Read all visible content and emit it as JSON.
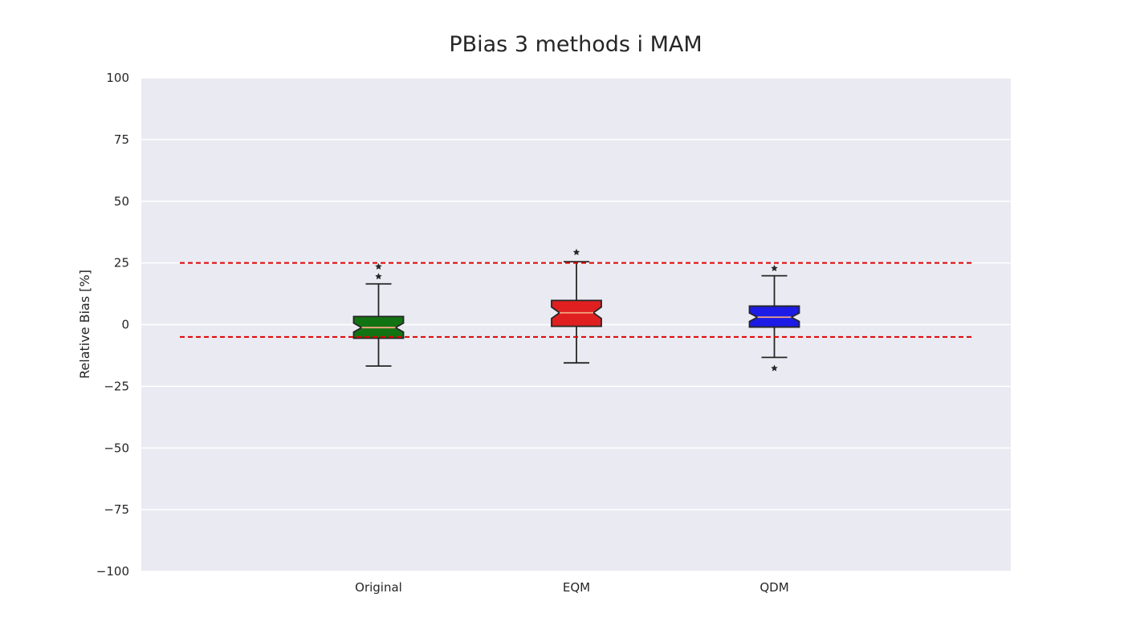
{
  "chart_data": {
    "type": "box",
    "title": "PBias 3 methods i MAM",
    "xlabel": "",
    "ylabel": "Relative Bias [%]",
    "ylim": [
      -100,
      100
    ],
    "yticks": [
      100,
      75,
      50,
      25,
      0,
      -25,
      -50,
      -75,
      -100
    ],
    "ytick_labels": [
      "100",
      "75",
      "50",
      "25",
      "0",
      "−25",
      "−50",
      "−75",
      "−100"
    ],
    "grid": true,
    "categories": [
      "Original",
      "EQM",
      "QDM"
    ],
    "boxes": [
      {
        "name": "Original",
        "color": "#127312",
        "whisker_low": -16.8,
        "q1": -5.5,
        "median": -1.2,
        "q3": 3.3,
        "whisker_high": 16.5,
        "notch_low": -3.0,
        "notch_high": 0.6,
        "outliers": [
          19.5,
          23.5
        ]
      },
      {
        "name": "EQM",
        "color": "#e02020",
        "whisker_low": -15.5,
        "q1": -0.7,
        "median": 4.8,
        "q3": 9.8,
        "whisker_high": 25.5,
        "notch_low": 2.5,
        "notch_high": 7.1,
        "outliers": [
          29.3
        ]
      },
      {
        "name": "QDM",
        "color": "#1c1ce6",
        "whisker_low": -13.3,
        "q1": -1.0,
        "median": 3.0,
        "q3": 7.5,
        "whisker_high": 19.8,
        "notch_low": 1.3,
        "notch_high": 4.7,
        "outliers": [
          22.8,
          -17.7
        ]
      }
    ],
    "reference_lines": [
      {
        "y": 25,
        "color": "#e00000",
        "style": "dashed"
      },
      {
        "y": -5,
        "color": "#e00000",
        "style": "dashed"
      }
    ],
    "colors": {
      "plot_background": "#eaeaf2",
      "grid": "#ffffff",
      "median": "#f4a582",
      "whisker": "#262626",
      "outlier": "#262626"
    }
  }
}
